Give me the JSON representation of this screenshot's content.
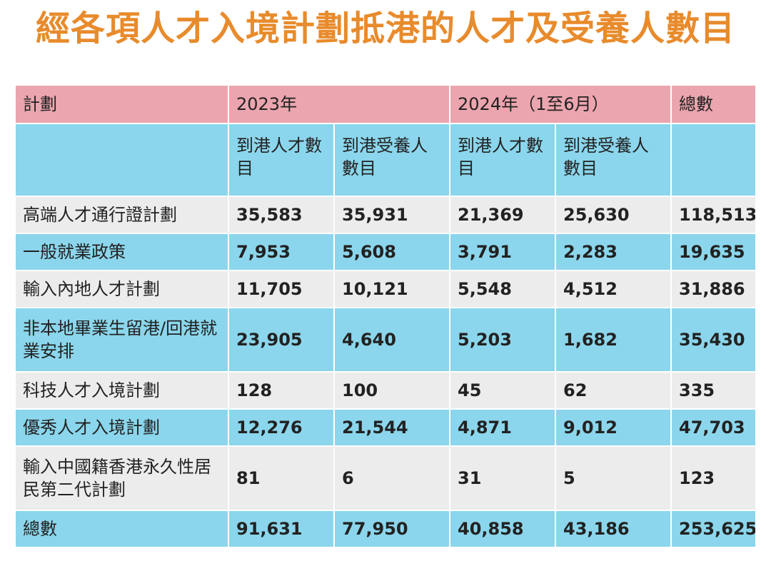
{
  "title": "經各項人才入境計劃抵港的人才及受養人數目",
  "header": {
    "plan_label": "計劃",
    "year_2023": "2023年",
    "year_2024": "2024年（1至6月）",
    "total_label": "總數",
    "sub_talent": "到港人才數目",
    "sub_dependant": "到港受養人數目"
  },
  "rows": [
    {
      "plan": "高端人才通行證計劃",
      "t2023": "35,583",
      "d2023": "35,931",
      "t2024": "21,369",
      "d2024": "25,630",
      "total": "118,513"
    },
    {
      "plan": "一般就業政策",
      "t2023": "7,953",
      "d2023": "5,608",
      "t2024": "3,791",
      "d2024": "2,283",
      "total": "19,635"
    },
    {
      "plan": "輸入內地人才計劃",
      "t2023": "11,705",
      "d2023": "10,121",
      "t2024": "5,548",
      "d2024": "4,512",
      "total": "31,886"
    },
    {
      "plan": "非本地畢業生留港/回港就業安排",
      "t2023": "23,905",
      "d2023": "4,640",
      "t2024": "5,203",
      "d2024": "1,682",
      "total": "35,430"
    },
    {
      "plan": "科技人才入境計劃",
      "t2023": "128",
      "d2023": "100",
      "t2024": "45",
      "d2024": "62",
      "total": "335"
    },
    {
      "plan": "優秀人才入境計劃",
      "t2023": "12,276",
      "d2023": "21,544",
      "t2024": "4,871",
      "d2024": "9,012",
      "total": "47,703"
    },
    {
      "plan": "輸入中國籍香港永久性居民第二代計劃",
      "t2023": "81",
      "d2023": "6",
      "t2024": "31",
      "d2024": "5",
      "total": "123"
    },
    {
      "plan": "總數",
      "t2023": "91,631",
      "d2023": "77,950",
      "t2024": "40,858",
      "d2024": "43,186",
      "total": "253,625"
    }
  ],
  "colors": {
    "title": "#e88b2c",
    "header_pink": "#eba5ae",
    "row_blue": "#8bd6ec",
    "row_gray": "#ececec"
  }
}
